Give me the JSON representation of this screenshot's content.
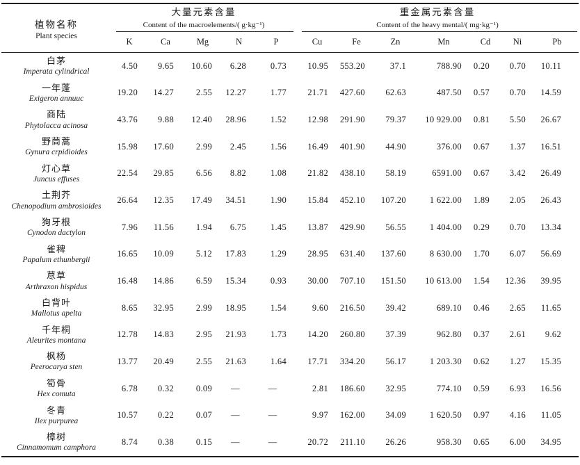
{
  "table": {
    "header": {
      "plant": {
        "zh": "植物名称",
        "en": "Plant species"
      },
      "macro": {
        "zh": "大量元素含量",
        "en": "Content of the macroelements/( g·kg⁻¹)"
      },
      "heavy": {
        "zh": "重金属元素含量",
        "en": "Content of the heavy mental/( mg·kg⁻¹)"
      },
      "macro_cols": [
        "K",
        "Ca",
        "Mg",
        "N",
        "P"
      ],
      "heavy_cols": [
        "Cu",
        "Fe",
        "Zn",
        "Mn",
        "Cd",
        "Ni",
        "Pb"
      ]
    },
    "rows": [
      {
        "zh": "白茅",
        "latin": "Imperata cylindrical",
        "values": [
          "4.50",
          "9.65",
          "10.60",
          "6.28",
          "0.73",
          "10.95",
          "553.20",
          "37.1",
          "788.90",
          "0.20",
          "0.70",
          "10.11"
        ]
      },
      {
        "zh": "一年蓬",
        "latin": "Exigeron annuuc",
        "values": [
          "19.20",
          "14.27",
          "2.55",
          "12.27",
          "1.77",
          "21.71",
          "427.60",
          "62.63",
          "487.50",
          "0.57",
          "0.70",
          "14.59"
        ]
      },
      {
        "zh": "商陆",
        "latin": "Phytolacca acinosa",
        "values": [
          "43.76",
          "9.88",
          "12.40",
          "28.96",
          "1.52",
          "12.98",
          "291.90",
          "79.37",
          "10 929.00",
          "0.81",
          "5.50",
          "26.67"
        ]
      },
      {
        "zh": "野茼蒿",
        "latin": "Gynura crpidioides",
        "values": [
          "15.98",
          "17.60",
          "2.99",
          "2.45",
          "1.56",
          "16.49",
          "401.90",
          "44.90",
          "376.00",
          "0.67",
          "1.37",
          "16.51"
        ]
      },
      {
        "zh": "灯心草",
        "latin": "Juncus effuses",
        "values": [
          "22.54",
          "29.85",
          "6.56",
          "8.82",
          "1.08",
          "21.82",
          "438.10",
          "58.19",
          "6591.00",
          "0.67",
          "3.42",
          "26.49"
        ]
      },
      {
        "zh": "土荆芥",
        "latin": "Chenopodium ambrosioides",
        "values": [
          "26.64",
          "12.35",
          "17.49",
          "34.51",
          "1.90",
          "15.84",
          "452.10",
          "107.20",
          "1 622.00",
          "1.89",
          "2.05",
          "26.43"
        ]
      },
      {
        "zh": "狗牙根",
        "latin": "Cynodon dactylon",
        "values": [
          "7.96",
          "11.56",
          "1.94",
          "6.75",
          "1.45",
          "13.87",
          "429.90",
          "56.55",
          "1 404.00",
          "0.29",
          "0.70",
          "13.34"
        ]
      },
      {
        "zh": "雀稗",
        "latin": "Papalum ethunbergii",
        "values": [
          "16.65",
          "10.09",
          "5.12",
          "17.83",
          "1.29",
          "28.95",
          "631.40",
          "137.60",
          "8 630.00",
          "1.70",
          "6.07",
          "56.69"
        ]
      },
      {
        "zh": "荩草",
        "latin": "Arthraxon hispidus",
        "values": [
          "16.48",
          "14.86",
          "6.59",
          "15.34",
          "0.93",
          "30.00",
          "707.10",
          "151.50",
          "10 613.00",
          "1.54",
          "12.36",
          "39.95"
        ]
      },
      {
        "zh": "白背叶",
        "latin": "Mallotus apelta",
        "values": [
          "8.65",
          "32.95",
          "2.99",
          "18.95",
          "1.54",
          "9.60",
          "216.50",
          "39.42",
          "689.10",
          "0.46",
          "2.65",
          "11.65"
        ]
      },
      {
        "zh": "千年桐",
        "latin": "Aleurites montana",
        "values": [
          "12.78",
          "14.83",
          "2.95",
          "21.93",
          "1.73",
          "14.20",
          "260.80",
          "37.39",
          "962.80",
          "0.37",
          "2.61",
          "9.62"
        ]
      },
      {
        "zh": "枫杨",
        "latin": "Peerocarya sten",
        "values": [
          "13.77",
          "20.49",
          "2.55",
          "21.63",
          "1.64",
          "17.71",
          "334.20",
          "56.17",
          "1 203.30",
          "0.62",
          "1.27",
          "15.35"
        ]
      },
      {
        "zh": "筍骨",
        "latin": "Hex comuta",
        "values": [
          "6.78",
          "0.32",
          "0.09",
          "—",
          "—",
          "2.81",
          "186.60",
          "32.95",
          "774.10",
          "0.59",
          "6.93",
          "16.56"
        ]
      },
      {
        "zh": "冬青",
        "latin": "Ilex purpurea",
        "values": [
          "10.57",
          "0.22",
          "0.07",
          "—",
          "—",
          "9.97",
          "162.00",
          "34.09",
          "1 620.50",
          "0.97",
          "4.16",
          "11.05"
        ]
      },
      {
        "zh": "樟树",
        "latin": "Cinnamomum camphora",
        "values": [
          "8.74",
          "0.38",
          "0.15",
          "—",
          "—",
          "20.72",
          "211.10",
          "26.26",
          "958.30",
          "0.65",
          "6.00",
          "34.95"
        ]
      }
    ]
  }
}
